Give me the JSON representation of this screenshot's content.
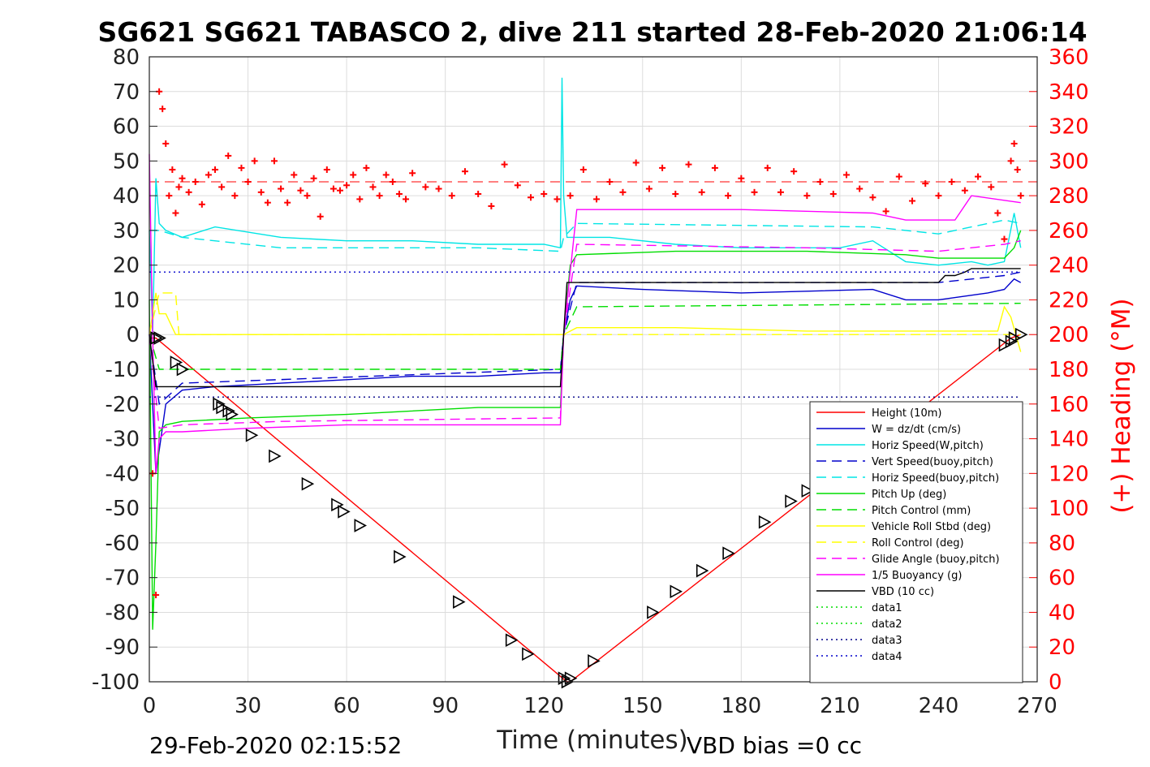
{
  "chart_data": {
    "type": "line",
    "title": "SG621 SG621 TABASCO 2, dive 211 started 28-Feb-2020 21:06:14",
    "xlabel": "Time (minutes)",
    "ylabel_right": "(+) Heading (°M)",
    "footer_left": "29-Feb-2020 02:15:52",
    "footer_right": "VBD bias =0 cc",
    "xlim": [
      0,
      270
    ],
    "ylim": [
      -100,
      80
    ],
    "ylim_right": [
      0,
      360
    ],
    "x_ticks": [
      "0",
      "30",
      "60",
      "90",
      "120",
      "150",
      "180",
      "210",
      "240",
      "270"
    ],
    "y_ticks": [
      "80",
      "70",
      "60",
      "50",
      "40",
      "30",
      "20",
      "10",
      "0",
      "-10",
      "-20",
      "-30",
      "-40",
      "-50",
      "-60",
      "-70",
      "-80",
      "-90",
      "-100"
    ],
    "y_right_ticks": [
      "360",
      "340",
      "320",
      "300",
      "280",
      "260",
      "240",
      "220",
      "200",
      "180",
      "160",
      "140",
      "120",
      "100",
      "80",
      "60",
      "40",
      "20",
      "0"
    ],
    "grid": true,
    "legend_position": "bottom-right",
    "series": [
      {
        "name": "Height (10m)",
        "color": "#ff0000",
        "style": "solid",
        "x": [
          0,
          2,
          127,
          128,
          262,
          265
        ],
        "y": [
          -1,
          -1,
          -100,
          -100,
          -1,
          0
        ]
      },
      {
        "name": "W = dz/dt (cm/s)",
        "color": "#0000cc",
        "style": "solid",
        "x": [
          0,
          2,
          5,
          10,
          20,
          40,
          60,
          80,
          100,
          120,
          125,
          126,
          128,
          130,
          150,
          180,
          220,
          230,
          240,
          255,
          260,
          263,
          265
        ],
        "y": [
          0,
          -40,
          -20,
          -16,
          -15,
          -14,
          -13,
          -12,
          -12,
          -11,
          -11,
          0,
          10,
          14,
          13,
          12,
          13,
          10,
          10,
          12,
          13,
          16,
          15
        ]
      },
      {
        "name": "Horiz Speed(W,pitch)",
        "color": "#00e5e5",
        "style": "solid",
        "x": [
          0,
          1,
          2,
          3,
          5,
          10,
          20,
          40,
          60,
          80,
          100,
          120,
          125,
          125.5,
          126,
          127,
          128,
          130,
          140,
          160,
          180,
          210,
          220,
          230,
          240,
          250,
          255,
          260,
          263,
          265
        ],
        "y": [
          30,
          0,
          45,
          32,
          30,
          28,
          31,
          28,
          27,
          27,
          26,
          26,
          25,
          74,
          40,
          28,
          28,
          28,
          28,
          26,
          25,
          25,
          27,
          21,
          20,
          21,
          20,
          21,
          35,
          25
        ]
      },
      {
        "name": "Vert Speed(buoy,pitch)",
        "color": "#0000cc",
        "style": "dashed",
        "x": [
          0,
          3,
          10,
          125,
          126,
          130,
          240,
          250,
          260,
          265
        ],
        "y": [
          0,
          -20,
          -14,
          -10,
          0,
          15,
          15,
          16,
          17,
          18
        ]
      },
      {
        "name": "Horiz Speed(buoy,pitch)",
        "color": "#00e5e5",
        "style": "dashed",
        "x": [
          0,
          3,
          10,
          40,
          60,
          100,
          125,
          126,
          130,
          220,
          240,
          250,
          260,
          265
        ],
        "y": [
          30,
          30,
          28,
          25,
          25,
          25,
          24,
          28,
          32,
          31,
          29,
          31,
          33,
          32
        ]
      },
      {
        "name": "Pitch Up (deg)",
        "color": "#00dd00",
        "style": "solid",
        "x": [
          0,
          1,
          2,
          3,
          5,
          10,
          30,
          60,
          100,
          125,
          126,
          128,
          130,
          160,
          200,
          230,
          240,
          255,
          260,
          263,
          265
        ],
        "y": [
          10,
          -85,
          -60,
          -28,
          -26,
          -25,
          -24,
          -23,
          -21,
          -21,
          0,
          20,
          23,
          24,
          24,
          23,
          22,
          22,
          22,
          25,
          30
        ]
      },
      {
        "name": "Pitch Control (mm)",
        "color": "#00dd00",
        "style": "dashed",
        "x": [
          0,
          3,
          125,
          126,
          130,
          265
        ],
        "y": [
          0,
          -10,
          -10,
          0,
          8,
          9
        ]
      },
      {
        "name": "Vehicle Roll Stbd (deg)",
        "color": "#ffff00",
        "style": "solid",
        "x": [
          0,
          2,
          3,
          5,
          8,
          10,
          20,
          40,
          60,
          80,
          100,
          120,
          125,
          126,
          130,
          160,
          200,
          240,
          258,
          260,
          262,
          265
        ],
        "y": [
          0,
          12,
          6,
          6,
          0,
          0,
          0,
          0,
          0,
          0,
          0,
          0,
          0,
          0,
          2,
          2,
          1,
          1,
          1,
          8,
          5,
          -5
        ]
      },
      {
        "name": "Roll Control (deg)",
        "color": "#ffff00",
        "style": "dashed",
        "x": [
          0,
          3,
          5,
          8,
          9,
          265
        ],
        "y": [
          0,
          12,
          12,
          12,
          0,
          0
        ]
      },
      {
        "name": "Glide Angle (buoy,pitch)",
        "color": "#ff00ff",
        "style": "dashed",
        "x": [
          0,
          3,
          10,
          40,
          125,
          126,
          130,
          200,
          240,
          260,
          265
        ],
        "y": [
          0,
          -27,
          -26,
          -25,
          -24,
          0,
          26,
          25,
          24,
          26,
          27
        ]
      },
      {
        "name": "1/5 Buoyancy (g)",
        "color": "#ff00ff",
        "style": "solid",
        "x": [
          0,
          1,
          2,
          3,
          5,
          10,
          30,
          60,
          120,
          125,
          126,
          130,
          180,
          220,
          230,
          245,
          250,
          265
        ],
        "y": [
          52,
          0,
          -40,
          -30,
          -28,
          -28,
          -27,
          -26,
          -26,
          -26,
          0,
          36,
          36,
          35,
          33,
          33,
          40,
          38
        ]
      },
      {
        "name": "VBD (10 cc)",
        "color": "#000000",
        "style": "solid",
        "x": [
          0,
          2,
          3,
          8,
          10,
          125,
          126,
          127,
          130,
          240,
          242,
          245,
          248,
          250,
          265
        ],
        "y": [
          0,
          -15,
          -15,
          -15,
          -15,
          -15,
          0,
          15,
          15,
          15,
          17,
          17,
          18,
          19,
          19
        ]
      },
      {
        "name": "data1",
        "color": "#00dd00",
        "style": "dotted",
        "x": [],
        "y": []
      },
      {
        "name": "data2",
        "color": "#00dd00",
        "style": "dotted",
        "x": [],
        "y": []
      },
      {
        "name": "data3",
        "color": "#000088",
        "style": "dotted",
        "x": [
          0,
          265
        ],
        "y": [
          -18,
          -18
        ]
      },
      {
        "name": "data4",
        "color": "#0000cc",
        "style": "dotted",
        "x": [
          0,
          265
        ],
        "y": [
          18,
          18
        ]
      }
    ],
    "heading_series": {
      "color": "#ff0000",
      "marker": "+",
      "axis": "right",
      "x": [
        1,
        2,
        3,
        4,
        5,
        6,
        7,
        8,
        9,
        10,
        12,
        14,
        16,
        18,
        20,
        22,
        24,
        26,
        28,
        30,
        32,
        34,
        36,
        38,
        40,
        42,
        44,
        46,
        48,
        50,
        52,
        54,
        56,
        58,
        60,
        62,
        64,
        66,
        68,
        70,
        72,
        74,
        76,
        78,
        80,
        84,
        88,
        92,
        96,
        100,
        104,
        108,
        112,
        116,
        120,
        124,
        128,
        132,
        136,
        140,
        144,
        148,
        152,
        156,
        160,
        164,
        168,
        172,
        176,
        180,
        184,
        188,
        192,
        196,
        200,
        204,
        208,
        212,
        216,
        220,
        224,
        228,
        232,
        236,
        240,
        244,
        248,
        252,
        256,
        258,
        260,
        262,
        263,
        264,
        265
      ],
      "y": [
        120,
        50,
        340,
        330,
        310,
        280,
        295,
        270,
        285,
        290,
        282,
        288,
        275,
        292,
        295,
        285,
        303,
        280,
        296,
        288,
        300,
        282,
        276,
        300,
        284,
        276,
        292,
        283,
        280,
        290,
        268,
        295,
        284,
        283,
        286,
        292,
        278,
        296,
        285,
        280,
        292,
        288,
        281,
        278,
        293,
        285,
        284,
        280,
        294,
        281,
        274,
        298,
        286,
        279,
        281,
        278,
        280,
        295,
        278,
        288,
        282,
        299,
        284,
        296,
        281,
        298,
        282,
        296,
        280,
        290,
        282,
        296,
        282,
        294,
        280,
        288,
        281,
        292,
        284,
        279,
        271,
        291,
        277,
        287,
        280,
        288,
        283,
        291,
        285,
        270,
        255,
        300,
        310,
        295,
        280
      ]
    },
    "waypoints": {
      "marker": "triangle",
      "color": "#000000",
      "x": [
        2,
        3,
        8,
        10,
        21,
        22,
        24,
        25,
        31,
        38,
        48,
        57,
        59,
        64,
        76,
        94,
        110,
        115,
        126,
        127,
        128,
        135,
        153,
        160,
        168,
        176,
        187,
        195,
        200,
        260,
        262,
        263,
        265
      ],
      "y": [
        -1,
        -1,
        -8,
        -10,
        -20,
        -21,
        -22,
        -23,
        -29,
        -35,
        -43,
        -49,
        -51,
        -55,
        -64,
        -77,
        -88,
        -92,
        -99,
        -100,
        -99,
        -94,
        -80,
        -74,
        -68,
        -63,
        -54,
        -48,
        -45,
        -3,
        -2,
        -1,
        0
      ]
    },
    "reference_lines": [
      {
        "y": 44,
        "color": "#ff0000",
        "style": "dashed",
        "label": ""
      }
    ]
  }
}
